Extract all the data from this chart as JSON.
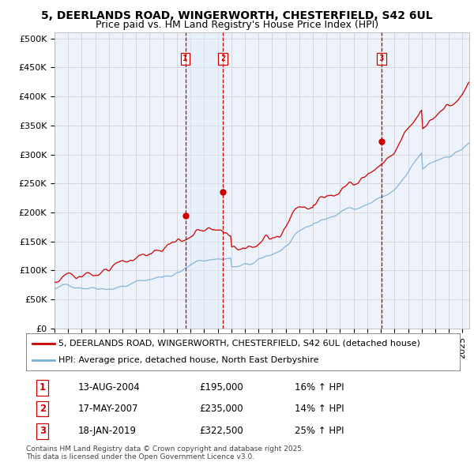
{
  "title_line1": "5, DEERLANDS ROAD, WINGERWORTH, CHESTERFIELD, S42 6UL",
  "title_line2": "Price paid vs. HM Land Registry's House Price Index (HPI)",
  "ylabel_ticks": [
    "£0",
    "£50K",
    "£100K",
    "£150K",
    "£200K",
    "£250K",
    "£300K",
    "£350K",
    "£400K",
    "£450K",
    "£500K"
  ],
  "ytick_values": [
    0,
    50000,
    100000,
    150000,
    200000,
    250000,
    300000,
    350000,
    400000,
    450000,
    500000
  ],
  "ylim": [
    0,
    510000
  ],
  "xlim_start": 1995.0,
  "xlim_end": 2025.5,
  "sale_dates": [
    2004.617,
    2007.38,
    2019.046
  ],
  "sale_prices": [
    195000,
    235000,
    322500
  ],
  "sale_labels": [
    "1",
    "2",
    "3"
  ],
  "vline_color": "#cc0000",
  "hpi_line_color": "#7bafd4",
  "price_line_color": "#cc0000",
  "shade_color": "#ddeeff",
  "background_color": "#ffffff",
  "plot_bg_color": "#eef2fa",
  "grid_color": "#cccccc",
  "legend_entries": [
    "5, DEERLANDS ROAD, WINGERWORTH, CHESTERFIELD, S42 6UL (detached house)",
    "HPI: Average price, detached house, North East Derbyshire"
  ],
  "table_data": [
    [
      "1",
      "13-AUG-2004",
      "£195,000",
      "16% ↑ HPI"
    ],
    [
      "2",
      "17-MAY-2007",
      "£235,000",
      "14% ↑ HPI"
    ],
    [
      "3",
      "18-JAN-2019",
      "£322,500",
      "25% ↑ HPI"
    ]
  ],
  "footer_text": "Contains HM Land Registry data © Crown copyright and database right 2025.\nThis data is licensed under the Open Government Licence v3.0.",
  "title_fontsize": 10,
  "tick_fontsize": 8,
  "legend_fontsize": 8,
  "table_fontsize": 8.5
}
